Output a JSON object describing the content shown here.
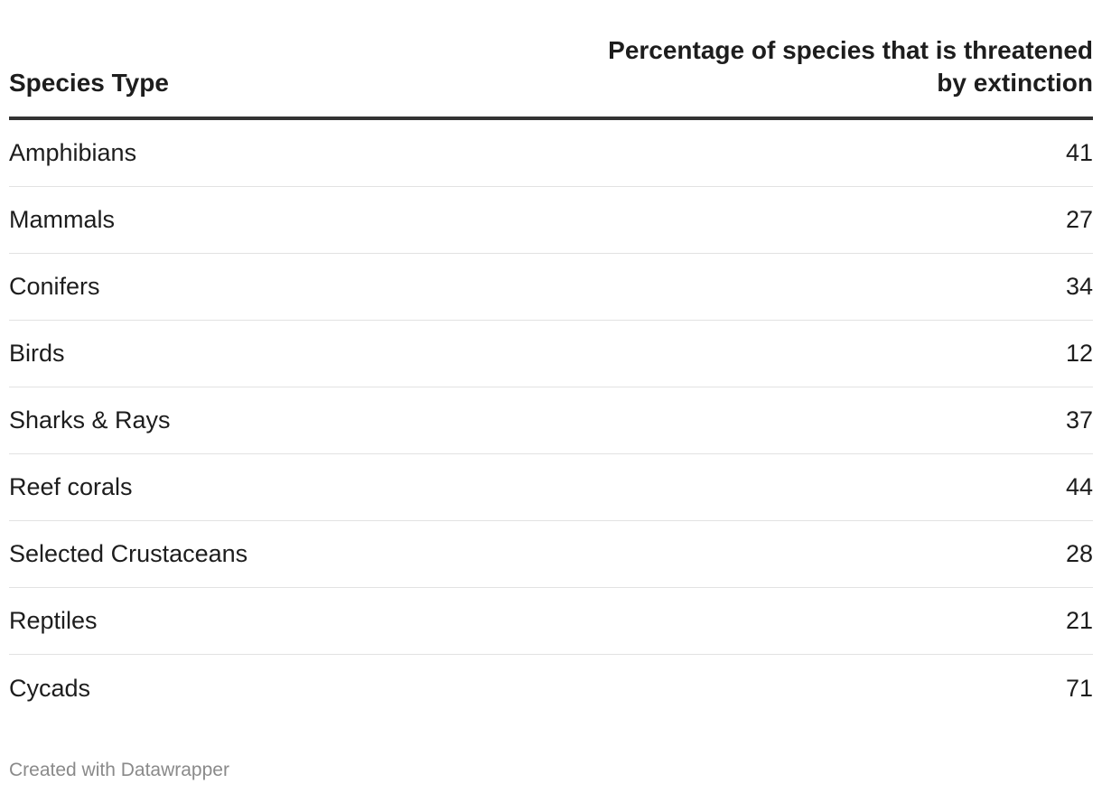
{
  "chart_data": {
    "type": "table",
    "columns": [
      "Species Type",
      "Percentage of species that is threatened by extinction"
    ],
    "categories": [
      "Amphibians",
      "Mammals",
      "Conifers",
      "Birds",
      "Sharks & Rays",
      "Reef corals",
      "Selected Crustaceans",
      "Reptiles",
      "Cycads"
    ],
    "values": [
      41,
      27,
      34,
      12,
      37,
      44,
      28,
      21,
      71
    ]
  },
  "footer": {
    "credit": "Created with Datawrapper"
  }
}
